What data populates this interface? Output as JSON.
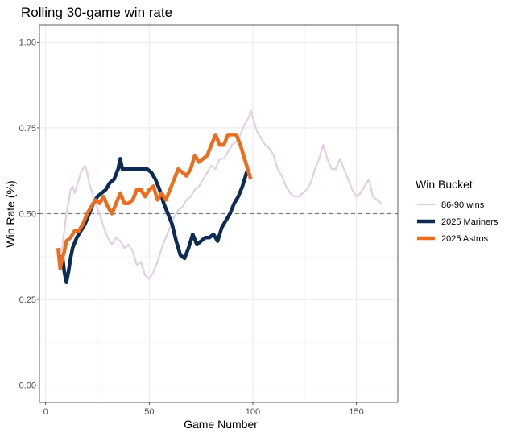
{
  "chart_data": {
    "type": "line",
    "title": "Rolling 30-game win rate",
    "xlabel": "Game Number",
    "ylabel": "Win Rate (%)",
    "xlim": [
      -3,
      170
    ],
    "ylim": [
      -0.05,
      1.05
    ],
    "x_ticks": [
      0,
      50,
      100,
      150
    ],
    "x_tick_labels": [
      "0",
      "50",
      "100",
      "150"
    ],
    "y_ticks": [
      0,
      0.25,
      0.5,
      0.75,
      1.0
    ],
    "y_tick_labels": [
      "0.00",
      "0.25",
      "0.50",
      "0.75",
      "1.00"
    ],
    "reference_line": {
      "y": 0.5,
      "style": "dashed",
      "color": "#7f7f7f"
    },
    "legend": {
      "title": "Win Bucket",
      "position": "right"
    },
    "series": [
      {
        "name": "86-90 wins",
        "color": "#e3cfe3",
        "width": 2.2,
        "points": [
          [
            6,
            0.37
          ],
          [
            8,
            0.4
          ],
          [
            9,
            0.45
          ],
          [
            10,
            0.5
          ],
          [
            11,
            0.53
          ],
          [
            12,
            0.57
          ],
          [
            13,
            0.58
          ],
          [
            14,
            0.56
          ],
          [
            15,
            0.58
          ],
          [
            16,
            0.6
          ],
          [
            17,
            0.62
          ],
          [
            18,
            0.63
          ],
          [
            19,
            0.64
          ],
          [
            20,
            0.62
          ],
          [
            21,
            0.59
          ],
          [
            22,
            0.57
          ],
          [
            24,
            0.53
          ],
          [
            26,
            0.5
          ],
          [
            28,
            0.46
          ],
          [
            30,
            0.43
          ],
          [
            32,
            0.41
          ],
          [
            34,
            0.43
          ],
          [
            36,
            0.42
          ],
          [
            38,
            0.4
          ],
          [
            40,
            0.41
          ],
          [
            42,
            0.39
          ],
          [
            44,
            0.35
          ],
          [
            46,
            0.36
          ],
          [
            48,
            0.32
          ],
          [
            50,
            0.31
          ],
          [
            52,
            0.33
          ],
          [
            54,
            0.36
          ],
          [
            56,
            0.4
          ],
          [
            58,
            0.43
          ],
          [
            60,
            0.46
          ],
          [
            62,
            0.49
          ],
          [
            64,
            0.51
          ],
          [
            66,
            0.52
          ],
          [
            68,
            0.54
          ],
          [
            70,
            0.55
          ],
          [
            72,
            0.57
          ],
          [
            74,
            0.58
          ],
          [
            76,
            0.6
          ],
          [
            78,
            0.62
          ],
          [
            80,
            0.64
          ],
          [
            82,
            0.63
          ],
          [
            84,
            0.66
          ],
          [
            86,
            0.66
          ],
          [
            88,
            0.68
          ],
          [
            90,
            0.7
          ],
          [
            92,
            0.71
          ],
          [
            94,
            0.73
          ],
          [
            96,
            0.76
          ],
          [
            98,
            0.78
          ],
          [
            99,
            0.8
          ],
          [
            100,
            0.78
          ],
          [
            102,
            0.74
          ],
          [
            104,
            0.72
          ],
          [
            106,
            0.7
          ],
          [
            108,
            0.69
          ],
          [
            110,
            0.67
          ],
          [
            112,
            0.63
          ],
          [
            114,
            0.61
          ],
          [
            116,
            0.58
          ],
          [
            118,
            0.56
          ],
          [
            120,
            0.55
          ],
          [
            122,
            0.55
          ],
          [
            124,
            0.56
          ],
          [
            126,
            0.57
          ],
          [
            128,
            0.59
          ],
          [
            130,
            0.63
          ],
          [
            132,
            0.66
          ],
          [
            134,
            0.7
          ],
          [
            136,
            0.66
          ],
          [
            138,
            0.63
          ],
          [
            140,
            0.63
          ],
          [
            142,
            0.66
          ],
          [
            144,
            0.63
          ],
          [
            146,
            0.6
          ],
          [
            148,
            0.57
          ],
          [
            150,
            0.55
          ],
          [
            152,
            0.56
          ],
          [
            154,
            0.58
          ],
          [
            156,
            0.6
          ],
          [
            158,
            0.55
          ],
          [
            160,
            0.54
          ],
          [
            162,
            0.53
          ]
        ]
      },
      {
        "name": "2025 Mariners",
        "color": "#0c2c56",
        "width": 4.5,
        "points": [
          [
            8,
            0.38
          ],
          [
            9,
            0.33
          ],
          [
            10,
            0.3
          ],
          [
            11,
            0.33
          ],
          [
            12,
            0.37
          ],
          [
            13,
            0.4
          ],
          [
            15,
            0.43
          ],
          [
            17,
            0.45
          ],
          [
            19,
            0.47
          ],
          [
            21,
            0.5
          ],
          [
            23,
            0.53
          ],
          [
            25,
            0.55
          ],
          [
            27,
            0.56
          ],
          [
            29,
            0.57
          ],
          [
            31,
            0.59
          ],
          [
            33,
            0.6
          ],
          [
            35,
            0.63
          ],
          [
            36,
            0.66
          ],
          [
            37,
            0.63
          ],
          [
            40,
            0.63
          ],
          [
            43,
            0.63
          ],
          [
            46,
            0.63
          ],
          [
            49,
            0.63
          ],
          [
            51,
            0.62
          ],
          [
            53,
            0.6
          ],
          [
            55,
            0.57
          ],
          [
            57,
            0.53
          ],
          [
            59,
            0.5
          ],
          [
            61,
            0.47
          ],
          [
            63,
            0.42
          ],
          [
            65,
            0.38
          ],
          [
            67,
            0.37
          ],
          [
            69,
            0.4
          ],
          [
            71,
            0.44
          ],
          [
            73,
            0.41
          ],
          [
            75,
            0.42
          ],
          [
            77,
            0.43
          ],
          [
            79,
            0.43
          ],
          [
            81,
            0.44
          ],
          [
            83,
            0.42
          ],
          [
            85,
            0.46
          ],
          [
            87,
            0.48
          ],
          [
            89,
            0.5
          ],
          [
            91,
            0.53
          ],
          [
            93,
            0.55
          ],
          [
            95,
            0.58
          ],
          [
            97,
            0.62
          ],
          [
            99,
            0.61
          ]
        ]
      },
      {
        "name": "2025 Astros",
        "color": "#eb6e1f",
        "width": 4.5,
        "points": [
          [
            6,
            0.4
          ],
          [
            7,
            0.34
          ],
          [
            8,
            0.37
          ],
          [
            9,
            0.39
          ],
          [
            10,
            0.42
          ],
          [
            12,
            0.43
          ],
          [
            14,
            0.45
          ],
          [
            16,
            0.45
          ],
          [
            18,
            0.47
          ],
          [
            20,
            0.5
          ],
          [
            22,
            0.52
          ],
          [
            24,
            0.54
          ],
          [
            26,
            0.53
          ],
          [
            28,
            0.55
          ],
          [
            30,
            0.52
          ],
          [
            32,
            0.5
          ],
          [
            34,
            0.53
          ],
          [
            36,
            0.56
          ],
          [
            38,
            0.53
          ],
          [
            40,
            0.53
          ],
          [
            42,
            0.54
          ],
          [
            44,
            0.57
          ],
          [
            46,
            0.57
          ],
          [
            48,
            0.55
          ],
          [
            50,
            0.57
          ],
          [
            52,
            0.58
          ],
          [
            54,
            0.54
          ],
          [
            56,
            0.56
          ],
          [
            58,
            0.54
          ],
          [
            60,
            0.57
          ],
          [
            62,
            0.6
          ],
          [
            64,
            0.63
          ],
          [
            66,
            0.62
          ],
          [
            68,
            0.61
          ],
          [
            70,
            0.63
          ],
          [
            72,
            0.67
          ],
          [
            74,
            0.65
          ],
          [
            76,
            0.66
          ],
          [
            78,
            0.67
          ],
          [
            80,
            0.7
          ],
          [
            82,
            0.73
          ],
          [
            84,
            0.7
          ],
          [
            86,
            0.7
          ],
          [
            88,
            0.73
          ],
          [
            90,
            0.73
          ],
          [
            92,
            0.73
          ],
          [
            94,
            0.7
          ],
          [
            96,
            0.66
          ],
          [
            98,
            0.62
          ],
          [
            99,
            0.6
          ]
        ]
      }
    ]
  }
}
